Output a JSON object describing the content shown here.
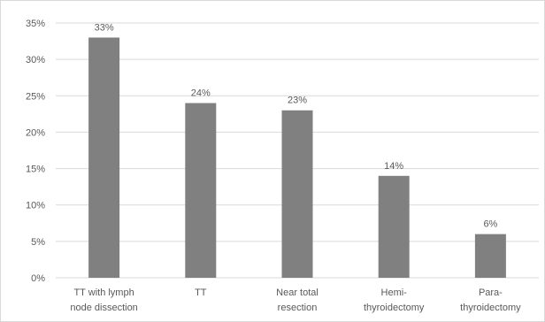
{
  "chart_data": {
    "type": "bar",
    "title": "",
    "xlabel": "",
    "ylabel": "",
    "ylim": [
      0,
      35
    ],
    "yticks": [
      0,
      5,
      10,
      15,
      20,
      25,
      30,
      35
    ],
    "ytick_labels": [
      "0%",
      "5%",
      "10%",
      "15%",
      "20%",
      "25%",
      "30%",
      "35%"
    ],
    "categories": [
      [
        "TT with lymph",
        "node dissection"
      ],
      [
        "TT"
      ],
      [
        "Near total",
        "resection"
      ],
      [
        "Hemi-",
        "thyroidectomy"
      ],
      [
        "Para-",
        "thyroidectomy"
      ]
    ],
    "values": [
      33,
      24,
      23,
      14,
      6
    ],
    "data_labels": [
      "33%",
      "24%",
      "23%",
      "14%",
      "6%"
    ],
    "grid": true,
    "legend": "none",
    "colors": {
      "bar": "#808080",
      "grid": "#d9d9d9",
      "text": "#595959"
    }
  }
}
